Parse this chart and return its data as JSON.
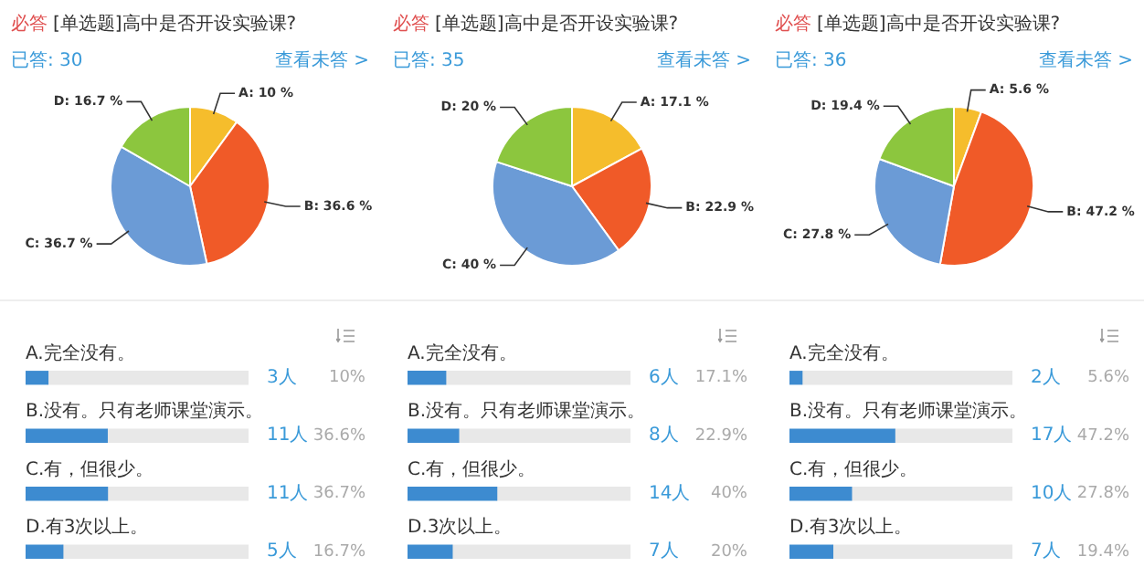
{
  "chart_data": [
    {
      "type": "pie",
      "title": "[单选题]高中是否开设实验课?",
      "annotations": [
        "必答",
        "已答: 30",
        "查看未答 >"
      ],
      "categories": [
        "A",
        "B",
        "C",
        "D"
      ],
      "values": [
        10,
        36.6,
        36.7,
        16.7
      ],
      "colors": [
        "#f5bd2c",
        "#f05a28",
        "#6b9bd6",
        "#8cc63e"
      ],
      "value_labels": [
        "10 %",
        "36.6 %",
        "36.7 %",
        "16.7 %"
      ]
    },
    {
      "type": "pie",
      "title": "[单选题]高中是否开设实验课?",
      "annotations": [
        "必答",
        "已答: 35",
        "查看未答 >"
      ],
      "categories": [
        "A",
        "B",
        "C",
        "D"
      ],
      "values": [
        17.1,
        22.9,
        40,
        20
      ],
      "colors": [
        "#f5bd2c",
        "#f05a28",
        "#6b9bd6",
        "#8cc63e"
      ],
      "value_labels": [
        "17.1 %",
        "22.9 %",
        "40 %",
        "20 %"
      ]
    },
    {
      "type": "pie",
      "title": "[单选题]高中是否开设实验课?",
      "annotations": [
        "必答",
        "已答: 36",
        "查看未答 >"
      ],
      "categories": [
        "A",
        "B",
        "C",
        "D"
      ],
      "values": [
        5.6,
        47.2,
        27.8,
        19.4
      ],
      "colors": [
        "#f5bd2c",
        "#f05a28",
        "#6b9bd6",
        "#8cc63e"
      ],
      "value_labels": [
        "5.6 %",
        "47.2 %",
        "27.8 %",
        "19.4 %"
      ]
    },
    {
      "type": "bar",
      "orientation": "horizontal",
      "stacked": true,
      "tick_labels": false,
      "xlim": [
        0,
        100
      ],
      "categories": [
        "A.完全没有。",
        "B.没有。只有老师课堂演示。",
        "C.有，但很少。",
        "D.有3次以上。"
      ],
      "series": [
        {
          "color": "#3d8bd0",
          "values": [
            10,
            36.6,
            36.7,
            16.7
          ],
          "value_labels": [
            "10%",
            "36.6%",
            "36.7%",
            "16.7%"
          ]
        },
        {
          "color": "#e8e8e8",
          "values": [
            90,
            63.4,
            63.3,
            83.3
          ]
        }
      ],
      "annotations": [
        "3人",
        "11人",
        "11人",
        "5人"
      ]
    },
    {
      "type": "bar",
      "orientation": "horizontal",
      "stacked": true,
      "tick_labels": false,
      "xlim": [
        0,
        100
      ],
      "categories": [
        "A.完全没有。",
        "B.没有。只有老师课堂演示。",
        "C.有，但很少。",
        "D.3次以上。"
      ],
      "series": [
        {
          "color": "#3d8bd0",
          "values": [
            17.1,
            22.9,
            40,
            20
          ],
          "value_labels": [
            "17.1%",
            "22.9%",
            "40%",
            "20%"
          ]
        },
        {
          "color": "#e8e8e8",
          "values": [
            82.9,
            77.1,
            60,
            80
          ]
        }
      ],
      "annotations": [
        "6人",
        "8人",
        "14人",
        "7人"
      ]
    },
    {
      "type": "bar",
      "orientation": "horizontal",
      "stacked": true,
      "tick_labels": false,
      "xlim": [
        0,
        100
      ],
      "categories": [
        "A.完全没有。",
        "B.没有。只有老师课堂演示。",
        "C.有，但很少。",
        "D.有3次以上。"
      ],
      "series": [
        {
          "color": "#3d8bd0",
          "values": [
            5.6,
            47.2,
            27.8,
            19.4
          ],
          "value_labels": [
            "5.6%",
            "47.2%",
            "27.8%",
            "19.4%"
          ]
        },
        {
          "color": "#e8e8e8",
          "values": [
            94.4,
            52.8,
            72.2,
            80.6
          ]
        }
      ],
      "annotations": [
        "2人",
        "17人",
        "10人",
        "7人"
      ]
    }
  ]
}
